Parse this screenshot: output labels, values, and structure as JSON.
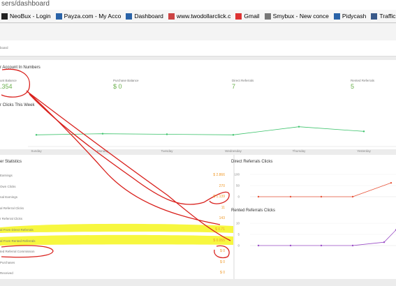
{
  "browser": {
    "url": "sers/dashboard",
    "bookmarks": [
      "NeoBux - Login",
      "Payza.com - My Acco",
      "Dashboard",
      "www.twodollarclick.c",
      "Gmail",
      "Smybux - New conce",
      "Pidycash",
      "Traffic Hurricane"
    ]
  },
  "breadcrumb": "board",
  "numbers": {
    "title": "r Account In Numbers",
    "cards": [
      {
        "label": "unt Balance",
        "value": ".354"
      },
      {
        "label": "Purchase Balance",
        "value": "$ 0"
      },
      {
        "label": "Direct Referrals",
        "value": "7"
      },
      {
        "label": "Rented Referrals",
        "value": "5"
      }
    ]
  },
  "weekly": {
    "title": "r Clicks This Week",
    "categories": [
      "Sunday",
      "Monday",
      "Tuesday",
      "Wednesday",
      "Thursday",
      "Yesterday"
    ],
    "values": [
      20,
      22,
      21,
      20,
      34,
      26
    ],
    "ylim": [
      0,
      60
    ],
    "color": "#3cc36b"
  },
  "stats": {
    "title": "er Statistics",
    "rows": [
      [
        "Earnings",
        "$ 2.866"
      ],
      [
        "Own Clicks",
        "270"
      ],
      [
        "nal Earnings",
        "$ 1.139"
      ],
      [
        "al Referral Clicks",
        "11"
      ],
      [
        "r Referral Clicks",
        "143"
      ],
      [
        "al From Direct Referrals",
        "$ 0.71"
      ],
      [
        "al From Rented Referrals",
        "$ 0.055"
      ],
      [
        "ted Referral Commission",
        "$ 0"
      ],
      [
        "Purchases",
        "$ 0"
      ],
      [
        "Received",
        "$ 0"
      ]
    ]
  },
  "direct": {
    "title": "Direct Referrals Clicks",
    "values": [
      0,
      0,
      0,
      0,
      62
    ],
    "ylim": [
      0,
      100
    ],
    "yticks": [
      0,
      50,
      100
    ],
    "color": "#e8543a"
  },
  "rented": {
    "title": "Rented Referrals Clicks",
    "values": [
      0,
      0,
      0,
      0,
      1.5,
      7
    ],
    "ylim": [
      0,
      10
    ],
    "yticks": [
      0,
      5,
      10
    ],
    "color": "#9b4fc7"
  }
}
